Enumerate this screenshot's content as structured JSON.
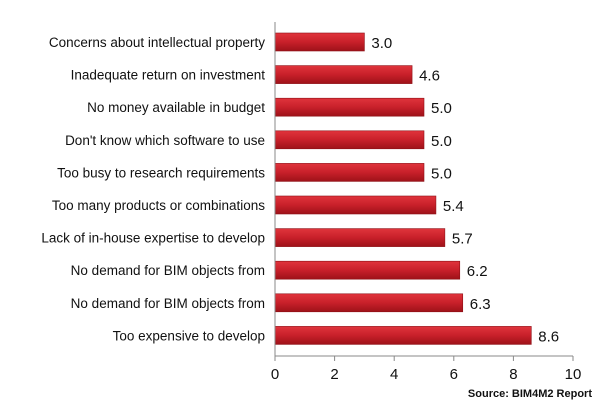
{
  "chart_data": {
    "type": "bar",
    "orientation": "horizontal",
    "categories": [
      "Concerns about intellectual property",
      "Inadequate return on investment",
      "No money available in budget",
      "Don't know which software to use",
      "Too busy to research requirements",
      "Too many products or combinations",
      "Lack of in-house expertise to develop",
      "No demand for BIM objects from",
      "No demand for BIM objects from",
      "Too expensive to develop"
    ],
    "values": [
      3.0,
      4.6,
      5.0,
      5.0,
      5.0,
      5.4,
      5.7,
      6.2,
      6.3,
      8.6
    ],
    "value_labels": [
      "3.0",
      "4.6",
      "5.0",
      "5.0",
      "5.0",
      "5.4",
      "5.7",
      "6.2",
      "6.3",
      "8.6"
    ],
    "xlim": [
      0,
      10
    ],
    "xticks": [
      0,
      2,
      4,
      6,
      8,
      10
    ],
    "xtick_labels": [
      "0",
      "2",
      "4",
      "6",
      "8",
      "10"
    ],
    "grid": false,
    "title": "",
    "xlabel": "",
    "ylabel": "",
    "bar_color": "#c8202a"
  },
  "source_text": "Source: BIM4M2 Report"
}
